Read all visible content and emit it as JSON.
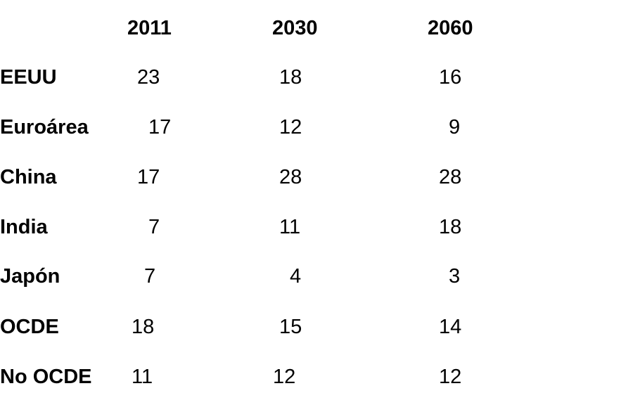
{
  "table": {
    "columns": [
      "2011",
      "2030",
      "2060"
    ],
    "rows": [
      {
        "label": "EEUU",
        "values": [
          "23",
          "18",
          "16"
        ]
      },
      {
        "label": "Euroárea",
        "values": [
          "17",
          "12",
          "9"
        ]
      },
      {
        "label": "China",
        "values": [
          "17",
          "28",
          "28"
        ]
      },
      {
        "label": "India",
        "values": [
          "7",
          "11",
          "18"
        ]
      },
      {
        "label": "Japón",
        "values": [
          "7",
          "4",
          "3"
        ]
      },
      {
        "label": "OCDE",
        "values": [
          "18",
          "15",
          "14"
        ]
      },
      {
        "label": "No OCDE",
        "values": [
          "11",
          "12",
          "12"
        ]
      }
    ]
  }
}
